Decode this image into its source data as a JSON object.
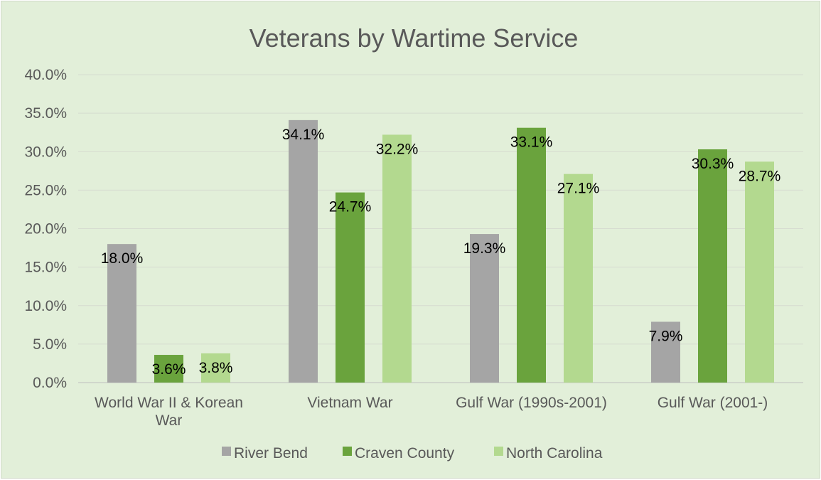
{
  "chart_data": {
    "type": "bar",
    "title": "Veterans by Wartime Service",
    "xlabel": "",
    "ylabel": "",
    "ylim": [
      0,
      40
    ],
    "y_ticks": [
      "0.0%",
      "5.0%",
      "10.0%",
      "15.0%",
      "20.0%",
      "25.0%",
      "30.0%",
      "35.0%",
      "40.0%"
    ],
    "grid": true,
    "legend_position": "bottom",
    "categories": [
      [
        "World War II & Korean",
        "War"
      ],
      [
        "Vietnam War"
      ],
      [
        "Gulf War (1990s-2001)"
      ],
      [
        "Gulf War (2001-)"
      ]
    ],
    "series": [
      {
        "name": "River Bend",
        "color": "#a5a5a5",
        "values": [
          18.0,
          34.1,
          19.3,
          7.9
        ],
        "labels": [
          "18.0%",
          "34.1%",
          "19.3%",
          "7.9%"
        ]
      },
      {
        "name": "Craven County",
        "color": "#6aa33d",
        "values": [
          3.6,
          24.7,
          33.1,
          30.3
        ],
        "labels": [
          "3.6%",
          "24.7%",
          "33.1%",
          "30.3%"
        ]
      },
      {
        "name": "North Carolina",
        "color": "#b3d98f",
        "values": [
          3.8,
          32.2,
          27.1,
          28.7
        ],
        "labels": [
          "3.8%",
          "32.2%",
          "27.1%",
          "28.7%"
        ]
      }
    ]
  }
}
